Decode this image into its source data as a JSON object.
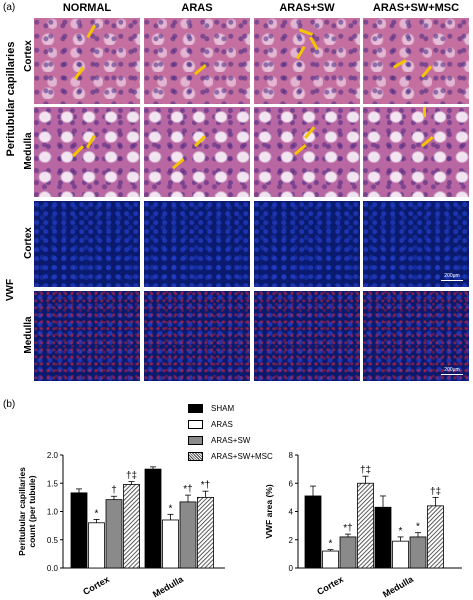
{
  "figure": {
    "panel_a": "(a)",
    "panel_b": "(b)",
    "columns": [
      "NORMAL",
      "ARAS",
      "ARAS+SW",
      "ARAS+SW+MSC"
    ],
    "groups": [
      {
        "label": "Peritubular capillaries",
        "rows": [
          "Cortex",
          "Medulla"
        ]
      },
      {
        "label": "VWF",
        "rows": [
          "Cortex",
          "Medulla"
        ]
      }
    ],
    "scale_bar": "200μm",
    "legend": [
      {
        "label": "SHAM",
        "fill": "#000000"
      },
      {
        "label": "ARAS",
        "fill": "#ffffff"
      },
      {
        "label": "ARAS+SW",
        "fill": "#8a8a8a"
      },
      {
        "label": "ARAS+SW+MSC",
        "fill": "hatched"
      }
    ]
  },
  "chart_data": [
    {
      "type": "bar",
      "ylabel": "Peritubular capillaries count (per tubule)",
      "categories": [
        "Cortex",
        "Medulla"
      ],
      "ylim": [
        0,
        2
      ],
      "yticks": [
        0,
        0.5,
        1,
        1.5,
        2
      ],
      "ytick_labels": [
        "0.0",
        "0.5",
        "1.0",
        "1.5",
        "2.0"
      ],
      "series": [
        {
          "name": "SHAM",
          "values": [
            1.33,
            1.75
          ],
          "err": [
            0.07,
            0.04
          ]
        },
        {
          "name": "ARAS",
          "values": [
            0.8,
            0.85
          ],
          "err": [
            0.06,
            0.1
          ]
        },
        {
          "name": "ARAS+SW",
          "values": [
            1.21,
            1.17
          ],
          "err": [
            0.06,
            0.12
          ]
        },
        {
          "name": "ARAS+SW+MSC",
          "values": [
            1.48,
            1.25
          ],
          "err": [
            0.05,
            0.11
          ]
        }
      ],
      "annotations": [
        [
          "",
          "*",
          "†",
          "†‡"
        ],
        [
          "",
          "*",
          "*†",
          "*†"
        ]
      ]
    },
    {
      "type": "bar",
      "ylabel": "VWF area (%)",
      "categories": [
        "Cortex",
        "Medulla"
      ],
      "ylim": [
        0,
        8
      ],
      "yticks": [
        0,
        2,
        4,
        6,
        8
      ],
      "ytick_labels": [
        "0",
        "2",
        "4",
        "6",
        "8"
      ],
      "series": [
        {
          "name": "SHAM",
          "values": [
            5.1,
            4.3
          ],
          "err": [
            0.7,
            0.8
          ]
        },
        {
          "name": "ARAS",
          "values": [
            1.2,
            1.9
          ],
          "err": [
            0.1,
            0.3
          ]
        },
        {
          "name": "ARAS+SW",
          "values": [
            2.2,
            2.2
          ],
          "err": [
            0.2,
            0.3
          ]
        },
        {
          "name": "ARAS+SW+MSC",
          "values": [
            6.0,
            4.4
          ],
          "err": [
            0.5,
            0.6
          ]
        }
      ],
      "annotations": [
        [
          "",
          "*",
          "*†",
          "†‡"
        ],
        [
          "",
          "*",
          "*",
          "†‡"
        ]
      ]
    }
  ]
}
